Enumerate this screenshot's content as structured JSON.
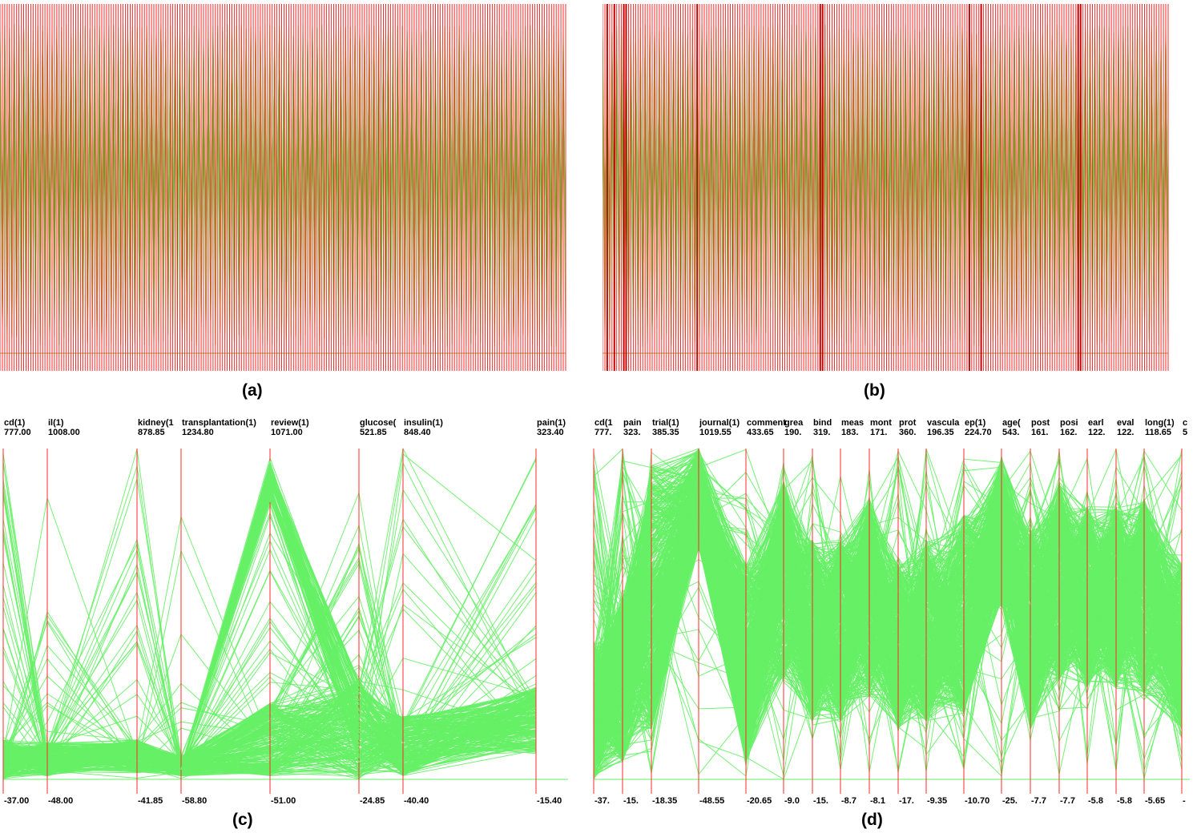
{
  "captions": {
    "a": "(a)",
    "b": "(b)",
    "c": "(c)",
    "d": "(d)"
  },
  "colors": {
    "axis": "#ff2a2a",
    "line_green": "#66f066",
    "dense_olive": "#8aa436",
    "bg": "#ffffff"
  },
  "chart_data": [
    {
      "id": "a",
      "type": "line",
      "description_kind": "parallel-coordinates",
      "axis_count": 240,
      "title": "",
      "series": []
    },
    {
      "id": "b",
      "type": "line",
      "description_kind": "parallel-coordinates",
      "axis_count": 240,
      "title": "",
      "series": []
    },
    {
      "id": "c",
      "type": "line",
      "description_kind": "parallel-coordinates",
      "axes": [
        {
          "name": "cd(1)",
          "max": "777.00",
          "min": "-37.00"
        },
        {
          "name": "il(1)",
          "max": "1008.00",
          "min": "-48.00"
        },
        {
          "name": "kidney(1",
          "max": "878.85",
          "min": "-41.85"
        },
        {
          "name": "transplantation(1)",
          "max": "1234.80",
          "min": "-58.80"
        },
        {
          "name": "review(1)",
          "max": "1071.00",
          "min": "-51.00"
        },
        {
          "name": "glucose(",
          "max": "521.85",
          "min": "-24.85"
        },
        {
          "name": "insulin(1)",
          "max": "848.40",
          "min": "-40.40"
        },
        {
          "name": "pain(1)",
          "max": "323.40",
          "min": "-15.40"
        }
      ]
    },
    {
      "id": "d",
      "type": "line",
      "description_kind": "parallel-coordinates",
      "axes": [
        {
          "name": "cd(1",
          "max": "777.",
          "min": "-37."
        },
        {
          "name": "pain",
          "max": "323.",
          "min": "-15."
        },
        {
          "name": "trial(1)",
          "max": "385.35",
          "min": "-18.35"
        },
        {
          "name": "journal(1)",
          "max": "1019.55",
          "min": "-48.55"
        },
        {
          "name": "comment",
          "max": "433.65",
          "min": "-20.65"
        },
        {
          "name": "grea",
          "max": "190.",
          "min": "-9.0"
        },
        {
          "name": "bind",
          "max": "319.",
          "min": "-15."
        },
        {
          "name": "meas",
          "max": "183.",
          "min": "-8.7"
        },
        {
          "name": "mont",
          "max": "171.",
          "min": "-8.1"
        },
        {
          "name": "prot",
          "max": "360.",
          "min": "-17."
        },
        {
          "name": "vascula",
          "max": "196.35",
          "min": "-9.35"
        },
        {
          "name": "ep(1)",
          "max": "224.70",
          "min": "-10.70"
        },
        {
          "name": "age(",
          "max": "543.",
          "min": "-25."
        },
        {
          "name": "post",
          "max": "161.",
          "min": "-7.7"
        },
        {
          "name": "posi",
          "max": "162.",
          "min": "-7.7"
        },
        {
          "name": "earl",
          "max": "122.",
          "min": "-5.8"
        },
        {
          "name": "eval",
          "max": "122.",
          "min": "-5.8"
        },
        {
          "name": "long(1)",
          "max": "118.65",
          "min": "-5.65"
        },
        {
          "name": "c",
          "max": "5",
          "min": "-"
        }
      ]
    }
  ]
}
